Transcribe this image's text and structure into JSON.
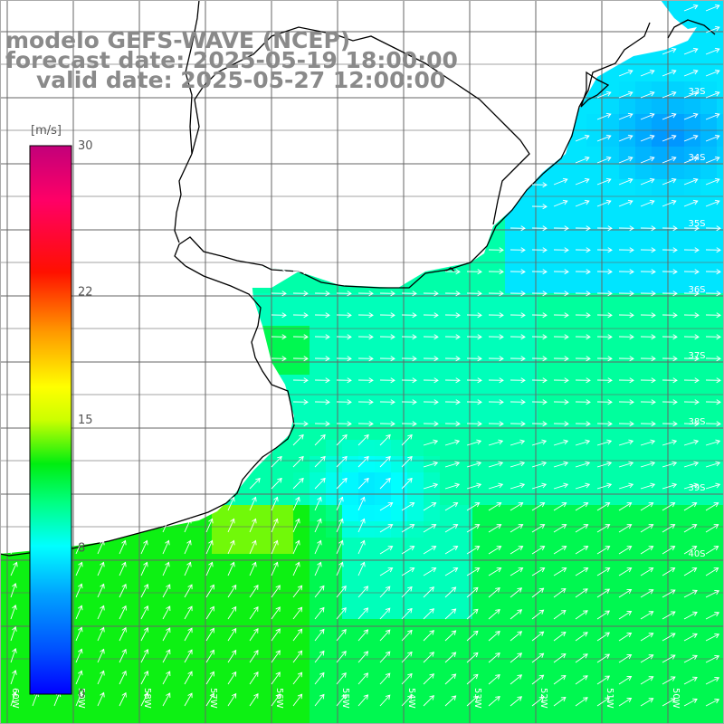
{
  "title": {
    "model": "modelo GEFS-WAVE (NCEP)",
    "forecast": "forecast date: 2025-05-19 18:00:00",
    "valid": "valid date: 2025-05-27 12:00:00"
  },
  "colorbar": {
    "unit": "[m/s]",
    "ticks": [
      "30",
      "22",
      "15",
      "8",
      "0"
    ],
    "tick_values": [
      30,
      22,
      15,
      8,
      0
    ],
    "range": [
      0,
      30
    ],
    "colors": [
      "#0000ff",
      "#0077ff",
      "#00ffff",
      "#00ff33",
      "#33ff00",
      "#ffff00",
      "#ff8800",
      "#ff0000",
      "#ff0080",
      "#c0007f"
    ]
  },
  "grid": {
    "lat_labels": [
      "33S",
      "34S",
      "35S",
      "36S",
      "37S",
      "38S",
      "39S",
      "40S"
    ],
    "lon_labels": [
      "60W",
      "59W",
      "58W",
      "57W",
      "56W",
      "55W",
      "54W",
      "53W",
      "52W",
      "51W",
      "50W"
    ]
  },
  "land_color": "#ffffff",
  "coast_color": "#000000",
  "arrow_color": "#ffffff"
}
